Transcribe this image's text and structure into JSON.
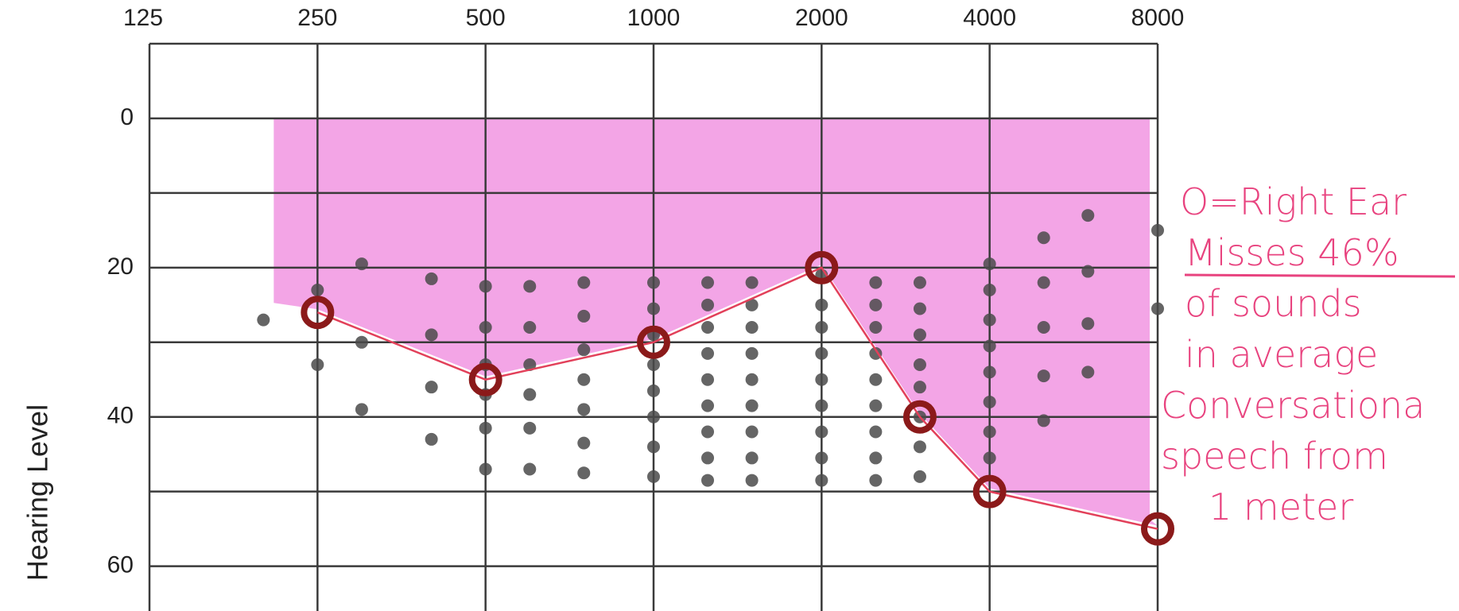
{
  "chart_data": {
    "type": "line",
    "y_label": "Hearing Level",
    "xscale": "log",
    "xlim": [
      125,
      8000
    ],
    "xticks": [
      125,
      250,
      500,
      1000,
      2000,
      4000,
      8000
    ],
    "ylim": [
      -10,
      66
    ],
    "y_inverted": true,
    "yticks": [
      0,
      20,
      40,
      60
    ],
    "yminorticks": [
      10,
      30,
      50
    ],
    "grid": true,
    "series": [
      {
        "name": "O=Right Ear",
        "color": "#8b1a1a",
        "line_color": "#e2405a",
        "x": [
          250,
          500,
          1000,
          2000,
          3000,
          4000,
          8000
        ],
        "values": [
          26,
          35,
          30,
          20,
          40,
          50,
          55
        ]
      }
    ],
    "speech_dots": [
      {
        "x": 200,
        "y": [
          27
        ]
      },
      {
        "x": 250,
        "y": [
          23,
          33
        ]
      },
      {
        "x": 300,
        "y": [
          19.5,
          30,
          39
        ]
      },
      {
        "x": 400,
        "y": [
          21.5,
          29,
          36,
          43
        ]
      },
      {
        "x": 500,
        "y": [
          22.5,
          28,
          33,
          37,
          41.5,
          47
        ]
      },
      {
        "x": 600,
        "y": [
          22.5,
          28,
          33,
          37,
          41.5,
          47
        ]
      },
      {
        "x": 750,
        "y": [
          22,
          26.5,
          31,
          35,
          39,
          43.5,
          47.5
        ]
      },
      {
        "x": 1000,
        "y": [
          22,
          25.5,
          29,
          33,
          36.5,
          40,
          44,
          48
        ]
      },
      {
        "x": 1250,
        "y": [
          22,
          25,
          28,
          31.5,
          35,
          38.5,
          42,
          45.5,
          48.5
        ]
      },
      {
        "x": 1500,
        "y": [
          22,
          25,
          28,
          31.5,
          35,
          38.5,
          42,
          45.5,
          48.5
        ]
      },
      {
        "x": 2000,
        "y": [
          21,
          25,
          28,
          31.5,
          35,
          38.5,
          42,
          45.5,
          48.5
        ]
      },
      {
        "x": 2500,
        "y": [
          22,
          25,
          28,
          31.5,
          35,
          38.5,
          42,
          45.5,
          48.5
        ]
      },
      {
        "x": 3000,
        "y": [
          22,
          25.5,
          29,
          33,
          36,
          40,
          44,
          48
        ]
      },
      {
        "x": 4000,
        "y": [
          19.5,
          23,
          27,
          30.5,
          34,
          38,
          42,
          45.5
        ]
      },
      {
        "x": 5000,
        "y": [
          16,
          22,
          28,
          34.5,
          40.5
        ]
      },
      {
        "x": 6000,
        "y": [
          13,
          20.5,
          27.5,
          34
        ]
      },
      {
        "x": 8000,
        "y": [
          15,
          25.5
        ]
      }
    ],
    "annotation": [
      "O=Right Ear",
      "Misses 46%",
      "of sounds",
      "in average",
      "Conversationa",
      "speech from",
      "1 meter"
    ]
  }
}
